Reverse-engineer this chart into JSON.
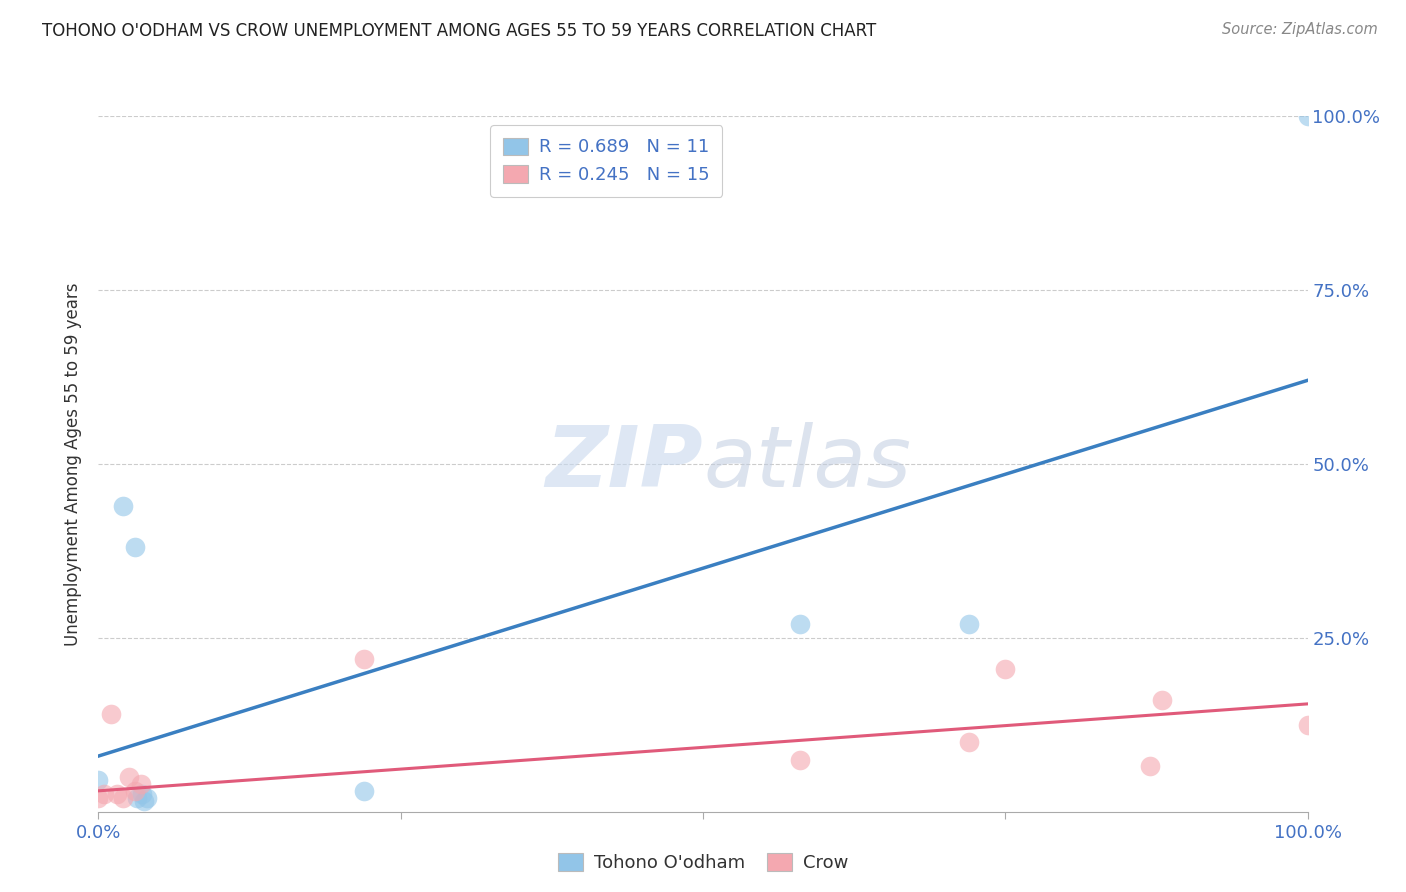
{
  "title": "TOHONO O'ODHAM VS CROW UNEMPLOYMENT AMONG AGES 55 TO 59 YEARS CORRELATION CHART",
  "source": "Source: ZipAtlas.com",
  "ylabel": "Unemployment Among Ages 55 to 59 years",
  "xlim": [
    0,
    1.0
  ],
  "ylim": [
    0,
    1.0
  ],
  "tohono_color": "#92c5e8",
  "crow_color": "#f4a8b0",
  "tohono_line_color": "#3a7fc1",
  "crow_line_color": "#e05a7a",
  "legend_label_1": "R = 0.689   N = 11",
  "legend_label_2": "R = 0.245   N = 15",
  "legend_bottom_1": "Tohono O'odham",
  "legend_bottom_2": "Crow",
  "watermark_zip": "ZIP",
  "watermark_atlas": "atlas",
  "background_color": "#ffffff",
  "grid_color": "#cccccc",
  "tohono_points_x": [
    0.0,
    0.02,
    0.03,
    0.032,
    0.036,
    0.038,
    0.04,
    0.22,
    0.58,
    0.72,
    1.0
  ],
  "tohono_points_y": [
    0.045,
    0.44,
    0.38,
    0.02,
    0.025,
    0.015,
    0.02,
    0.03,
    0.27,
    0.27,
    1.0
  ],
  "crow_points_x": [
    0.0,
    0.005,
    0.01,
    0.015,
    0.02,
    0.025,
    0.03,
    0.035,
    0.22,
    0.58,
    0.72,
    0.75,
    0.87,
    0.88,
    1.0
  ],
  "crow_points_y": [
    0.02,
    0.025,
    0.14,
    0.025,
    0.02,
    0.05,
    0.03,
    0.04,
    0.22,
    0.075,
    0.1,
    0.205,
    0.065,
    0.16,
    0.125
  ],
  "tohono_trend_x": [
    0.0,
    1.0
  ],
  "tohono_trend_y": [
    0.08,
    0.62
  ],
  "crow_trend_x": [
    0.0,
    1.0
  ],
  "crow_trend_y": [
    0.03,
    0.155
  ],
  "marker_size": 200
}
